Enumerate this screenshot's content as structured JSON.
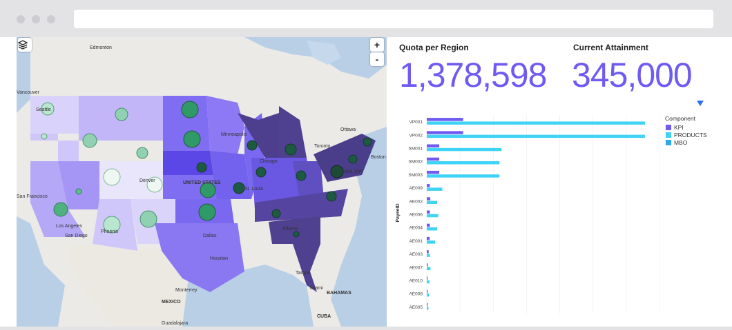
{
  "map": {
    "labels": [
      {
        "id": "edmonton",
        "text": "Edmonton"
      },
      {
        "id": "vancouver",
        "text": "Vancouver"
      },
      {
        "id": "seattle",
        "text": "Seattle"
      },
      {
        "id": "minneapolis",
        "text": "Minneapolis"
      },
      {
        "id": "ottawa",
        "text": "Ottawa"
      },
      {
        "id": "toronto",
        "text": "Toronto"
      },
      {
        "id": "boston",
        "text": "Boston"
      },
      {
        "id": "chicago",
        "text": "Chicago"
      },
      {
        "id": "newyork",
        "text": "New York"
      },
      {
        "id": "denver",
        "text": "Denver"
      },
      {
        "id": "unitedstates",
        "text": "UNITED STATES"
      },
      {
        "id": "stlouis",
        "text": "St. Louis"
      },
      {
        "id": "sanfrancisco",
        "text": "San Francisco"
      },
      {
        "id": "losangeles",
        "text": "Los Angeles"
      },
      {
        "id": "sandiego",
        "text": "San Diego"
      },
      {
        "id": "phoenix",
        "text": "Phoenix"
      },
      {
        "id": "dallas",
        "text": "Dallas"
      },
      {
        "id": "atlanta",
        "text": "Atlanta"
      },
      {
        "id": "houston",
        "text": "Houston"
      },
      {
        "id": "tampa",
        "text": "Tampa"
      },
      {
        "id": "miami",
        "text": "Miami"
      },
      {
        "id": "bahamas",
        "text": "BAHAMAS"
      },
      {
        "id": "monterrey",
        "text": "Monterrey"
      },
      {
        "id": "mexico",
        "text": "MEXICO"
      },
      {
        "id": "cuba",
        "text": "CUBA"
      },
      {
        "id": "guadalajara",
        "text": "Guadalajara"
      }
    ],
    "zoom_in": "+",
    "zoom_out": "-"
  },
  "kpi": {
    "quota_title": "Quota per Region",
    "quota_value": "1,378,598",
    "attainment_title": "Current Attainment",
    "attainment_value": "345,000"
  },
  "colors": {
    "kpi": "#6f5bf2",
    "products": "#3fd3f5",
    "mbo": "#2aa8f0",
    "filter": "#2a6ff0"
  },
  "chart_data": {
    "type": "bar",
    "orientation": "horizontal",
    "ylabel": "PayeeID",
    "xlabel": "",
    "legend_title": "Component",
    "legend_position": "top-right",
    "categories": [
      "VP001",
      "VP002",
      "SM001",
      "SM002",
      "SM003",
      "AE009",
      "AE002",
      "AE006",
      "AE004",
      "AE001",
      "AE003",
      "AE007",
      "AE010",
      "AE008",
      "AE005"
    ],
    "series": [
      {
        "name": "KPI",
        "color": "#6f5bf2",
        "values": [
          17500,
          17500,
          6000,
          6000,
          6000,
          1500,
          1700,
          1500,
          1500,
          1400,
          900,
          500,
          300,
          300,
          300
        ]
      },
      {
        "name": "PRODUCTS",
        "color": "#3fd3f5",
        "values": [
          105000,
          105000,
          36000,
          35000,
          35000,
          7500,
          5000,
          5500,
          5000,
          4000,
          1500,
          1800,
          1300,
          1000,
          800
        ]
      },
      {
        "name": "MBO",
        "color": "#2aa8f0",
        "values": [
          0,
          0,
          0,
          0,
          0,
          0,
          0,
          0,
          0,
          0,
          0,
          0,
          0,
          0,
          0
        ]
      }
    ],
    "xlim": [
      0,
      112000
    ],
    "grid": true
  }
}
